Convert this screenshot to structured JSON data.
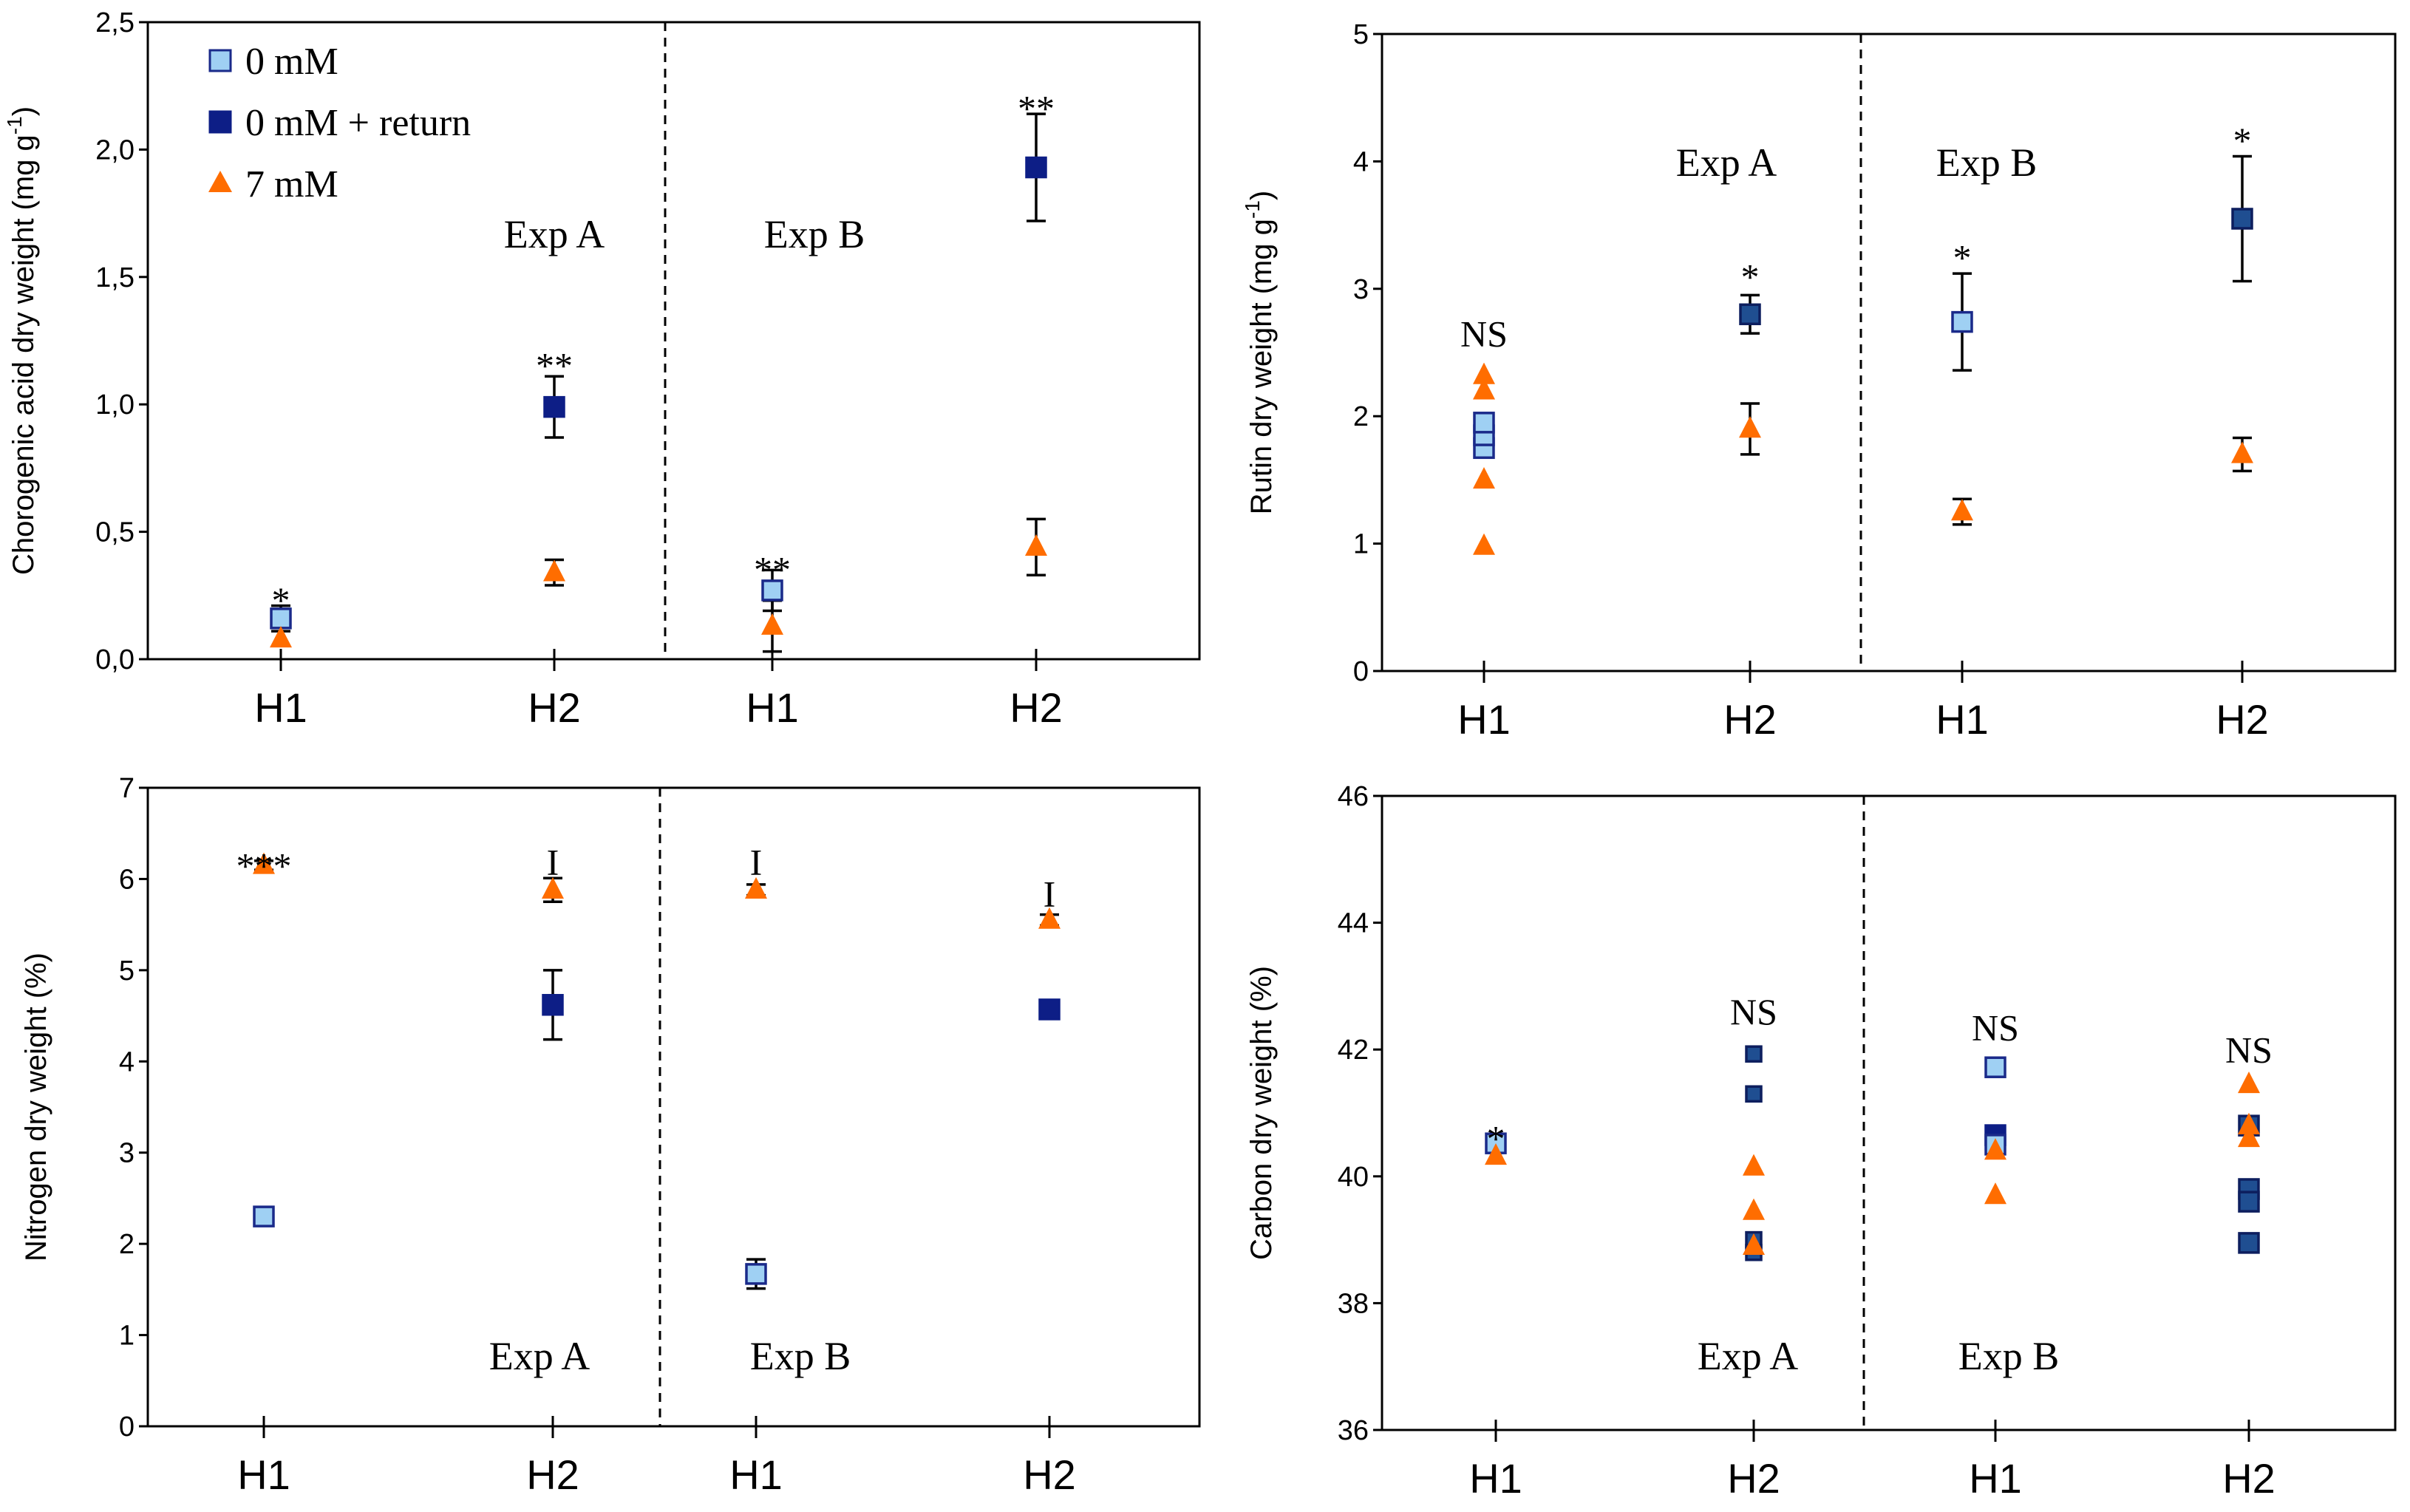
{
  "colors": {
    "light_square": "#9fd0f3",
    "dark_square": "#0d1e86",
    "mid_square": "#1f4e91",
    "triangle": "#ff6d00",
    "axis": "#000000"
  },
  "legend": [
    {
      "label": "0 mM",
      "marker": "square",
      "color": "#9fd0f3"
    },
    {
      "label": "0 mM + return",
      "marker": "square",
      "color": "#0d1e86"
    },
    {
      "label": "7 mM",
      "marker": "triangle",
      "color": "#ff6d00"
    }
  ],
  "chart_data": [
    {
      "type": "scatter",
      "ylabel": "Chorogenic acid dry weight (mg g-1)",
      "ylim": [
        0,
        2.5
      ],
      "yticks": [
        "0,0",
        "0,5",
        "1,0",
        "1,5",
        "2,0",
        "2,5"
      ],
      "categories": [
        "H1",
        "H2",
        "H1",
        "H2"
      ],
      "experiments": [
        "Exp A",
        "Exp B"
      ],
      "points": [
        {
          "cat": 0,
          "y": 0.16,
          "err": 0.05,
          "marker": "sq-light"
        },
        {
          "cat": 0,
          "y": 0.08,
          "err": 0.0,
          "marker": "tri"
        },
        {
          "cat": 1,
          "y": 0.99,
          "err": 0.12,
          "marker": "sq-dark"
        },
        {
          "cat": 1,
          "y": 0.34,
          "err": 0.05,
          "marker": "tri"
        },
        {
          "cat": 2,
          "y": 0.27,
          "err": 0.08,
          "marker": "sq-light"
        },
        {
          "cat": 2,
          "y": 0.13,
          "err": 0.1,
          "marker": "tri"
        },
        {
          "cat": 3,
          "y": 1.93,
          "err": 0.21,
          "marker": "sq-dark"
        },
        {
          "cat": 3,
          "y": 0.44,
          "err": 0.11,
          "marker": "tri"
        }
      ],
      "significance": [
        {
          "cat": 0,
          "label": "*",
          "y": 0.27
        },
        {
          "cat": 1,
          "label": "**",
          "y": 1.19
        },
        {
          "cat": 2,
          "label": "**",
          "y": 0.39
        },
        {
          "cat": 3,
          "label": "**",
          "y": 2.2
        }
      ]
    },
    {
      "type": "scatter",
      "ylabel": "Rutin dry weight (mg g-1)",
      "ylim": [
        0,
        5
      ],
      "yticks": [
        "0",
        "1",
        "2",
        "3",
        "4",
        "5"
      ],
      "categories": [
        "H1",
        "H2",
        "H1",
        "H2"
      ],
      "experiments": [
        "Exp A",
        "Exp B"
      ],
      "points": [
        {
          "cat": 0,
          "y": 1.75,
          "err": 0.0,
          "marker": "sq-light"
        },
        {
          "cat": 0,
          "y": 1.85,
          "err": 0.0,
          "marker": "sq-light"
        },
        {
          "cat": 0,
          "y": 1.95,
          "err": 0.0,
          "marker": "sq-light"
        },
        {
          "cat": 0,
          "y": 2.32,
          "err": 0.0,
          "marker": "tri"
        },
        {
          "cat": 0,
          "y": 2.2,
          "err": 0.0,
          "marker": "tri"
        },
        {
          "cat": 0,
          "y": 1.5,
          "err": 0.0,
          "marker": "tri"
        },
        {
          "cat": 0,
          "y": 0.98,
          "err": 0.0,
          "marker": "tri"
        },
        {
          "cat": 1,
          "y": 2.8,
          "err": 0.15,
          "marker": "sq-mid"
        },
        {
          "cat": 1,
          "y": 1.9,
          "err": 0.2,
          "marker": "tri"
        },
        {
          "cat": 2,
          "y": 2.74,
          "err": 0.38,
          "marker": "sq-light"
        },
        {
          "cat": 2,
          "y": 1.25,
          "err": 0.1,
          "marker": "tri"
        },
        {
          "cat": 3,
          "y": 3.55,
          "err": 0.49,
          "marker": "sq-mid"
        },
        {
          "cat": 3,
          "y": 1.7,
          "err": 0.13,
          "marker": "tri"
        }
      ],
      "significance": [
        {
          "cat": 0,
          "label": "NS",
          "y": 2.55
        },
        {
          "cat": 1,
          "label": "*",
          "y": 3.17
        },
        {
          "cat": 2,
          "label": "*",
          "y": 3.32
        },
        {
          "cat": 3,
          "label": "*",
          "y": 4.24
        }
      ]
    },
    {
      "type": "scatter",
      "ylabel": "Nitrogen dry weight (%)",
      "ylim": [
        0,
        7
      ],
      "yticks": [
        "0",
        "1",
        "2",
        "3",
        "4",
        "5",
        "6",
        "7"
      ],
      "categories": [
        "H1",
        "H2",
        "H1",
        "H2"
      ],
      "experiments": [
        "Exp A",
        "Exp B"
      ],
      "points": [
        {
          "cat": 0,
          "y": 2.3,
          "err": 0.06,
          "marker": "sq-light"
        },
        {
          "cat": 0,
          "y": 6.15,
          "err": 0.05,
          "marker": "tri"
        },
        {
          "cat": 1,
          "y": 4.62,
          "err": 0.38,
          "marker": "sq-dark"
        },
        {
          "cat": 1,
          "y": 5.88,
          "err": 0.13,
          "marker": "tri"
        },
        {
          "cat": 2,
          "y": 1.67,
          "err": 0.16,
          "marker": "sq-light"
        },
        {
          "cat": 2,
          "y": 5.88,
          "err": 0.06,
          "marker": "tri"
        },
        {
          "cat": 3,
          "y": 4.57,
          "err": 0.0,
          "marker": "sq-dark"
        },
        {
          "cat": 3,
          "y": 5.55,
          "err": 0.06,
          "marker": "tri"
        }
      ],
      "significance": [
        {
          "cat": 0,
          "label": "***",
          "y": 6.25
        },
        {
          "cat": 1,
          "label": "I",
          "y": 6.05
        },
        {
          "cat": 2,
          "label": "I",
          "y": 6.05
        },
        {
          "cat": 3,
          "label": "I",
          "y": 5.7
        }
      ]
    },
    {
      "type": "scatter",
      "ylabel": "Carbon dry weight (%)",
      "ylim": [
        36,
        46
      ],
      "yticks": [
        "36",
        "38",
        "40",
        "42",
        "44",
        "46"
      ],
      "categories": [
        "H1",
        "H2",
        "H1",
        "H2"
      ],
      "experiments": [
        "Exp A",
        "Exp B"
      ],
      "points": [
        {
          "cat": 0,
          "y": 40.52,
          "err": 0.0,
          "marker": "sq-light"
        },
        {
          "cat": 0,
          "y": 40.32,
          "err": 0.0,
          "marker": "tri"
        },
        {
          "cat": 1,
          "y": 41.93,
          "err": 0.0,
          "marker": "sq-mid-small"
        },
        {
          "cat": 1,
          "y": 41.3,
          "err": 0.0,
          "marker": "sq-mid-small"
        },
        {
          "cat": 1,
          "y": 39.0,
          "err": 0.0,
          "marker": "sq-mid-small"
        },
        {
          "cat": 1,
          "y": 38.8,
          "err": 0.0,
          "marker": "sq-mid-small"
        },
        {
          "cat": 1,
          "y": 40.15,
          "err": 0.0,
          "marker": "tri"
        },
        {
          "cat": 1,
          "y": 39.45,
          "err": 0.0,
          "marker": "tri"
        },
        {
          "cat": 1,
          "y": 38.9,
          "err": 0.0,
          "marker": "tri"
        },
        {
          "cat": 2,
          "y": 41.72,
          "err": 0.0,
          "marker": "sq-light"
        },
        {
          "cat": 2,
          "y": 40.65,
          "err": 0.0,
          "marker": "sq-dark"
        },
        {
          "cat": 2,
          "y": 40.5,
          "err": 0.0,
          "marker": "sq-light"
        },
        {
          "cat": 2,
          "y": 40.4,
          "err": 0.0,
          "marker": "tri"
        },
        {
          "cat": 2,
          "y": 39.7,
          "err": 0.0,
          "marker": "tri"
        },
        {
          "cat": 3,
          "y": 40.8,
          "err": 0.0,
          "marker": "sq-mid"
        },
        {
          "cat": 3,
          "y": 39.8,
          "err": 0.0,
          "marker": "sq-mid"
        },
        {
          "cat": 3,
          "y": 39.6,
          "err": 0.0,
          "marker": "sq-mid"
        },
        {
          "cat": 3,
          "y": 38.95,
          "err": 0.0,
          "marker": "sq-mid"
        },
        {
          "cat": 3,
          "y": 41.45,
          "err": 0.0,
          "marker": "tri"
        },
        {
          "cat": 3,
          "y": 40.8,
          "err": 0.0,
          "marker": "tri"
        },
        {
          "cat": 3,
          "y": 40.6,
          "err": 0.0,
          "marker": "tri"
        }
      ],
      "significance": [
        {
          "cat": 0,
          "label": "*",
          "y": 40.75
        },
        {
          "cat": 1,
          "label": "NS",
          "y": 42.4
        },
        {
          "cat": 2,
          "label": "NS",
          "y": 42.15
        },
        {
          "cat": 3,
          "label": "NS",
          "y": 41.8
        }
      ]
    }
  ]
}
